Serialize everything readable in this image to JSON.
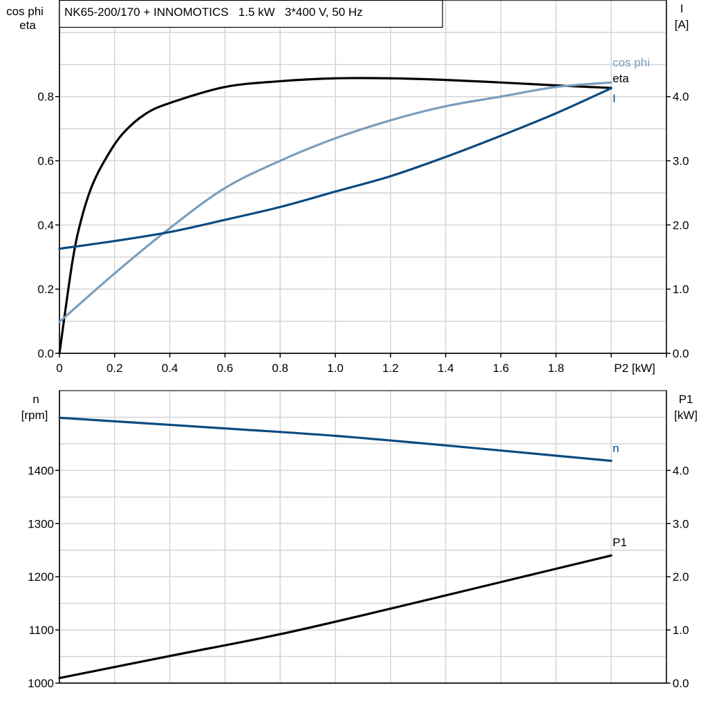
{
  "chart_data": [
    {
      "type": "line",
      "title": "NK65-200/170 + INNOMOTICS   1.5 kW   3*400 V, 50 Hz",
      "xlabel": "P2 [kW]",
      "ylabel_left": [
        "cos phi",
        "eta"
      ],
      "ylabel_right": [
        "I",
        "[A]"
      ],
      "xlim": [
        0,
        2.2
      ],
      "ylim_left": [
        0,
        1.1
      ],
      "ylim_right": [
        0,
        5.5
      ],
      "grid": true,
      "x_ticks": [
        "0",
        "0.2",
        "0.4",
        "0.6",
        "0.8",
        "1.0",
        "1.2",
        "1.4",
        "1.6",
        "1.8"
      ],
      "y_ticks_left": [
        "0.0",
        "0.2",
        "0.4",
        "0.6",
        "0.8"
      ],
      "y_ticks_right": [
        "0.0",
        "1.0",
        "2.0",
        "3.0",
        "4.0"
      ],
      "series": [
        {
          "name": "eta",
          "axis": "left",
          "color": "#000000",
          "x": [
            0,
            0.047,
            0.08,
            0.12,
            0.17,
            0.23,
            0.31,
            0.4,
            0.6,
            0.8,
            1.0,
            1.2,
            1.4,
            1.6,
            1.8,
            2.0
          ],
          "y": [
            0,
            0.286,
            0.42,
            0.526,
            0.61,
            0.685,
            0.745,
            0.78,
            0.83,
            0.848,
            0.857,
            0.857,
            0.852,
            0.844,
            0.835,
            0.827
          ]
        },
        {
          "name": "cos phi",
          "axis": "left",
          "color": "#7a9dbd",
          "x": [
            0,
            0.2,
            0.4,
            0.6,
            0.8,
            1.0,
            1.2,
            1.4,
            1.6,
            1.8,
            2.0
          ],
          "y": [
            0.098,
            0.249,
            0.39,
            0.515,
            0.6,
            0.67,
            0.726,
            0.77,
            0.8,
            0.83,
            0.844
          ]
        },
        {
          "name": "I",
          "axis": "right",
          "color": "#0b4a80",
          "x": [
            0,
            0.2,
            0.4,
            0.6,
            0.8,
            1.0,
            1.2,
            1.4,
            1.6,
            1.8,
            2.0
          ],
          "y": [
            1.63,
            1.75,
            1.89,
            2.08,
            2.28,
            2.52,
            2.76,
            3.06,
            3.39,
            3.74,
            4.13
          ]
        }
      ]
    },
    {
      "type": "line",
      "ylabel_left": [
        "n",
        "[rpm]"
      ],
      "ylabel_right": [
        "P1",
        "[kW]"
      ],
      "xlim": [
        0,
        2.2
      ],
      "ylim_left": [
        1000,
        1550
      ],
      "ylim_right": [
        0,
        5.5
      ],
      "grid": true,
      "y_ticks_left": [
        "1000",
        "1100",
        "1200",
        "1300",
        "1400"
      ],
      "y_ticks_right": [
        "0.0",
        "1.0",
        "2.0",
        "3.0",
        "4.0"
      ],
      "series": [
        {
          "name": "n",
          "axis": "left",
          "color": "#0b4a80",
          "x": [
            0,
            0.6,
            1.0,
            1.4,
            2.0
          ],
          "y": [
            1499,
            1479,
            1465,
            1447,
            1418
          ]
        },
        {
          "name": "P1",
          "axis": "right",
          "color": "#000000",
          "x": [
            0,
            0.4,
            0.8,
            1.2,
            1.6,
            2.0
          ],
          "y": [
            0.095,
            0.51,
            0.92,
            1.4,
            1.9,
            2.4
          ]
        }
      ]
    }
  ]
}
